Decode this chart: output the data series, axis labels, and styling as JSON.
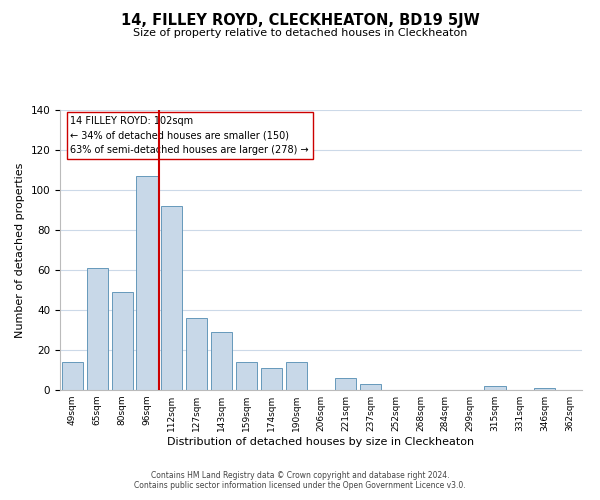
{
  "title": "14, FILLEY ROYD, CLECKHEATON, BD19 5JW",
  "subtitle": "Size of property relative to detached houses in Cleckheaton",
  "xlabel": "Distribution of detached houses by size in Cleckheaton",
  "ylabel": "Number of detached properties",
  "bar_labels": [
    "49sqm",
    "65sqm",
    "80sqm",
    "96sqm",
    "112sqm",
    "127sqm",
    "143sqm",
    "159sqm",
    "174sqm",
    "190sqm",
    "206sqm",
    "221sqm",
    "237sqm",
    "252sqm",
    "268sqm",
    "284sqm",
    "299sqm",
    "315sqm",
    "331sqm",
    "346sqm",
    "362sqm"
  ],
  "bar_values": [
    14,
    61,
    49,
    107,
    92,
    36,
    29,
    14,
    11,
    14,
    0,
    6,
    3,
    0,
    0,
    0,
    0,
    2,
    0,
    1,
    0
  ],
  "bar_color": "#c8d8e8",
  "bar_edge_color": "#6699bb",
  "vline_color": "#cc0000",
  "ylim": [
    0,
    140
  ],
  "yticks": [
    0,
    20,
    40,
    60,
    80,
    100,
    120,
    140
  ],
  "annotation_title": "14 FILLEY ROYD: 102sqm",
  "annotation_line1": "← 34% of detached houses are smaller (150)",
  "annotation_line2": "63% of semi-detached houses are larger (278) →",
  "footer_line1": "Contains HM Land Registry data © Crown copyright and database right 2024.",
  "footer_line2": "Contains public sector information licensed under the Open Government Licence v3.0.",
  "background_color": "#ffffff",
  "grid_color": "#ccd9e8"
}
